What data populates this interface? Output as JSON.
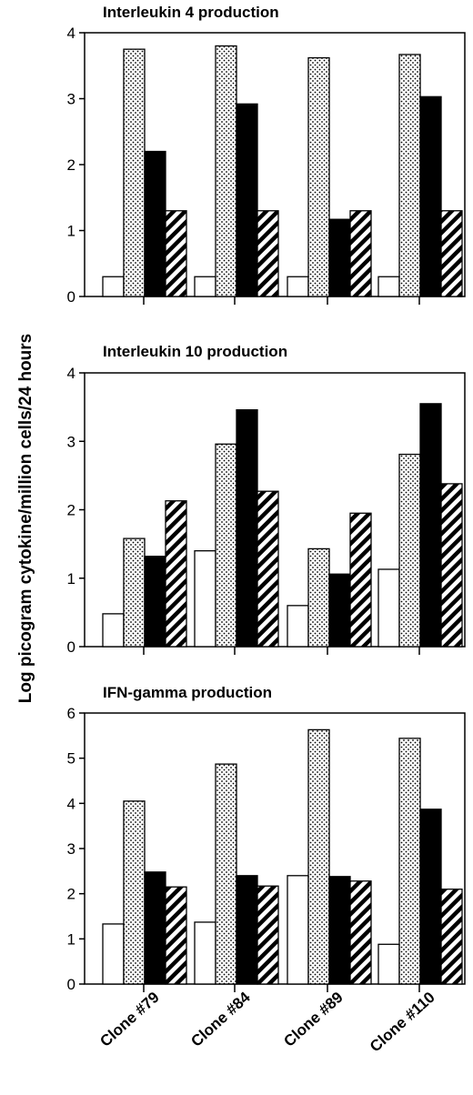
{
  "chart_data": {
    "type": "bar",
    "ylabel": "Log picogram cytokine/million cells/24 hours",
    "categories": [
      "Clone #79",
      "Clone #84",
      "Clone #89",
      "Clone #110"
    ],
    "series_styles": [
      {
        "fill": "white"
      },
      {
        "fill": "dots"
      },
      {
        "fill": "solid"
      },
      {
        "fill": "stripes"
      }
    ],
    "panels": [
      {
        "title": "Interleukin  4  production",
        "ylim": [
          0,
          4
        ],
        "yticks": [
          0,
          1,
          2,
          3,
          4
        ],
        "series": [
          {
            "values": [
              0.3,
              0.3,
              0.3,
              0.3
            ]
          },
          {
            "values": [
              3.75,
              3.8,
              3.62,
              3.67
            ]
          },
          {
            "values": [
              2.2,
              2.92,
              1.17,
              3.03
            ]
          },
          {
            "values": [
              1.3,
              1.3,
              1.3,
              1.3
            ]
          }
        ]
      },
      {
        "title": "Interleukin  10  production",
        "ylim": [
          0,
          4
        ],
        "yticks": [
          0,
          1,
          2,
          3,
          4
        ],
        "series": [
          {
            "values": [
              0.48,
              1.4,
              0.6,
              1.13
            ]
          },
          {
            "values": [
              1.58,
              2.96,
              1.43,
              2.81
            ]
          },
          {
            "values": [
              1.32,
              3.46,
              1.06,
              3.55
            ]
          },
          {
            "values": [
              2.13,
              2.27,
              1.95,
              2.38
            ]
          }
        ]
      },
      {
        "title": "IFN-gamma  production",
        "ylim": [
          0,
          6
        ],
        "yticks": [
          0,
          1,
          2,
          3,
          4,
          5,
          6
        ],
        "series": [
          {
            "values": [
              1.33,
              1.37,
              2.4,
              0.88
            ]
          },
          {
            "values": [
              4.05,
              4.87,
              5.63,
              5.44
            ]
          },
          {
            "values": [
              2.48,
              2.4,
              2.38,
              3.87
            ]
          },
          {
            "values": [
              2.15,
              2.17,
              2.28,
              2.1
            ]
          }
        ]
      }
    ]
  }
}
